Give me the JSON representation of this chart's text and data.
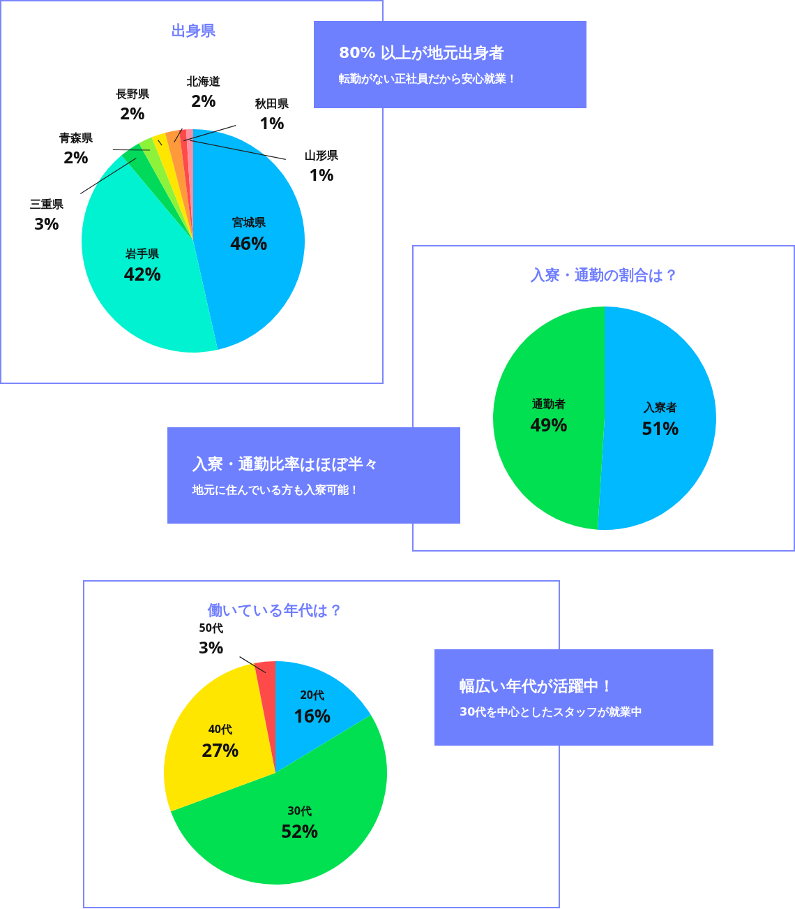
{
  "chart_data": [
    {
      "type": "pie",
      "title": "出身県",
      "categories": [
        "宮城県",
        "岩手県",
        "三重県",
        "青森県",
        "長野県",
        "北海道",
        "秋田県",
        "山形県"
      ],
      "values": [
        46,
        42,
        3,
        2,
        2,
        2,
        1,
        1
      ],
      "colors": [
        "#00b9ff",
        "#00f2d0",
        "#00d95a",
        "#8cf23a",
        "#ffe600",
        "#ff9a3c",
        "#ff4a4a",
        "#ff8fa0"
      ],
      "value_labels": [
        "46%",
        "42%",
        "3%",
        "2%",
        "2%",
        "2%",
        "1%",
        "1%"
      ]
    },
    {
      "type": "other",
      "title": "80% 以上が地元出身者",
      "subtitle": "転勤がない正社員だから安心就業！"
    },
    {
      "type": "pie",
      "title": "入寮・通勤の割合は？",
      "categories": [
        "入寮者",
        "通勤者"
      ],
      "values": [
        51,
        49
      ],
      "colors": [
        "#00b9ff",
        "#00e050"
      ],
      "value_labels": [
        "51%",
        "49%"
      ]
    },
    {
      "type": "other",
      "title": "入寮・通勤比率はほぼ半々",
      "subtitle": "地元に住んでいる方も入寮可能！"
    },
    {
      "type": "pie",
      "title": "働いている年代は？",
      "categories": [
        "20代",
        "30代",
        "40代",
        "50代"
      ],
      "values": [
        16,
        52,
        27,
        3
      ],
      "colors": [
        "#00b9ff",
        "#00e050",
        "#ffe600",
        "#ff4a4a"
      ],
      "value_labels": [
        "16%",
        "52%",
        "27%",
        "3%"
      ]
    },
    {
      "type": "other",
      "title": "幅広い年代が活躍中！",
      "subtitle": "30代を中心としたスタッフが就業中"
    }
  ]
}
